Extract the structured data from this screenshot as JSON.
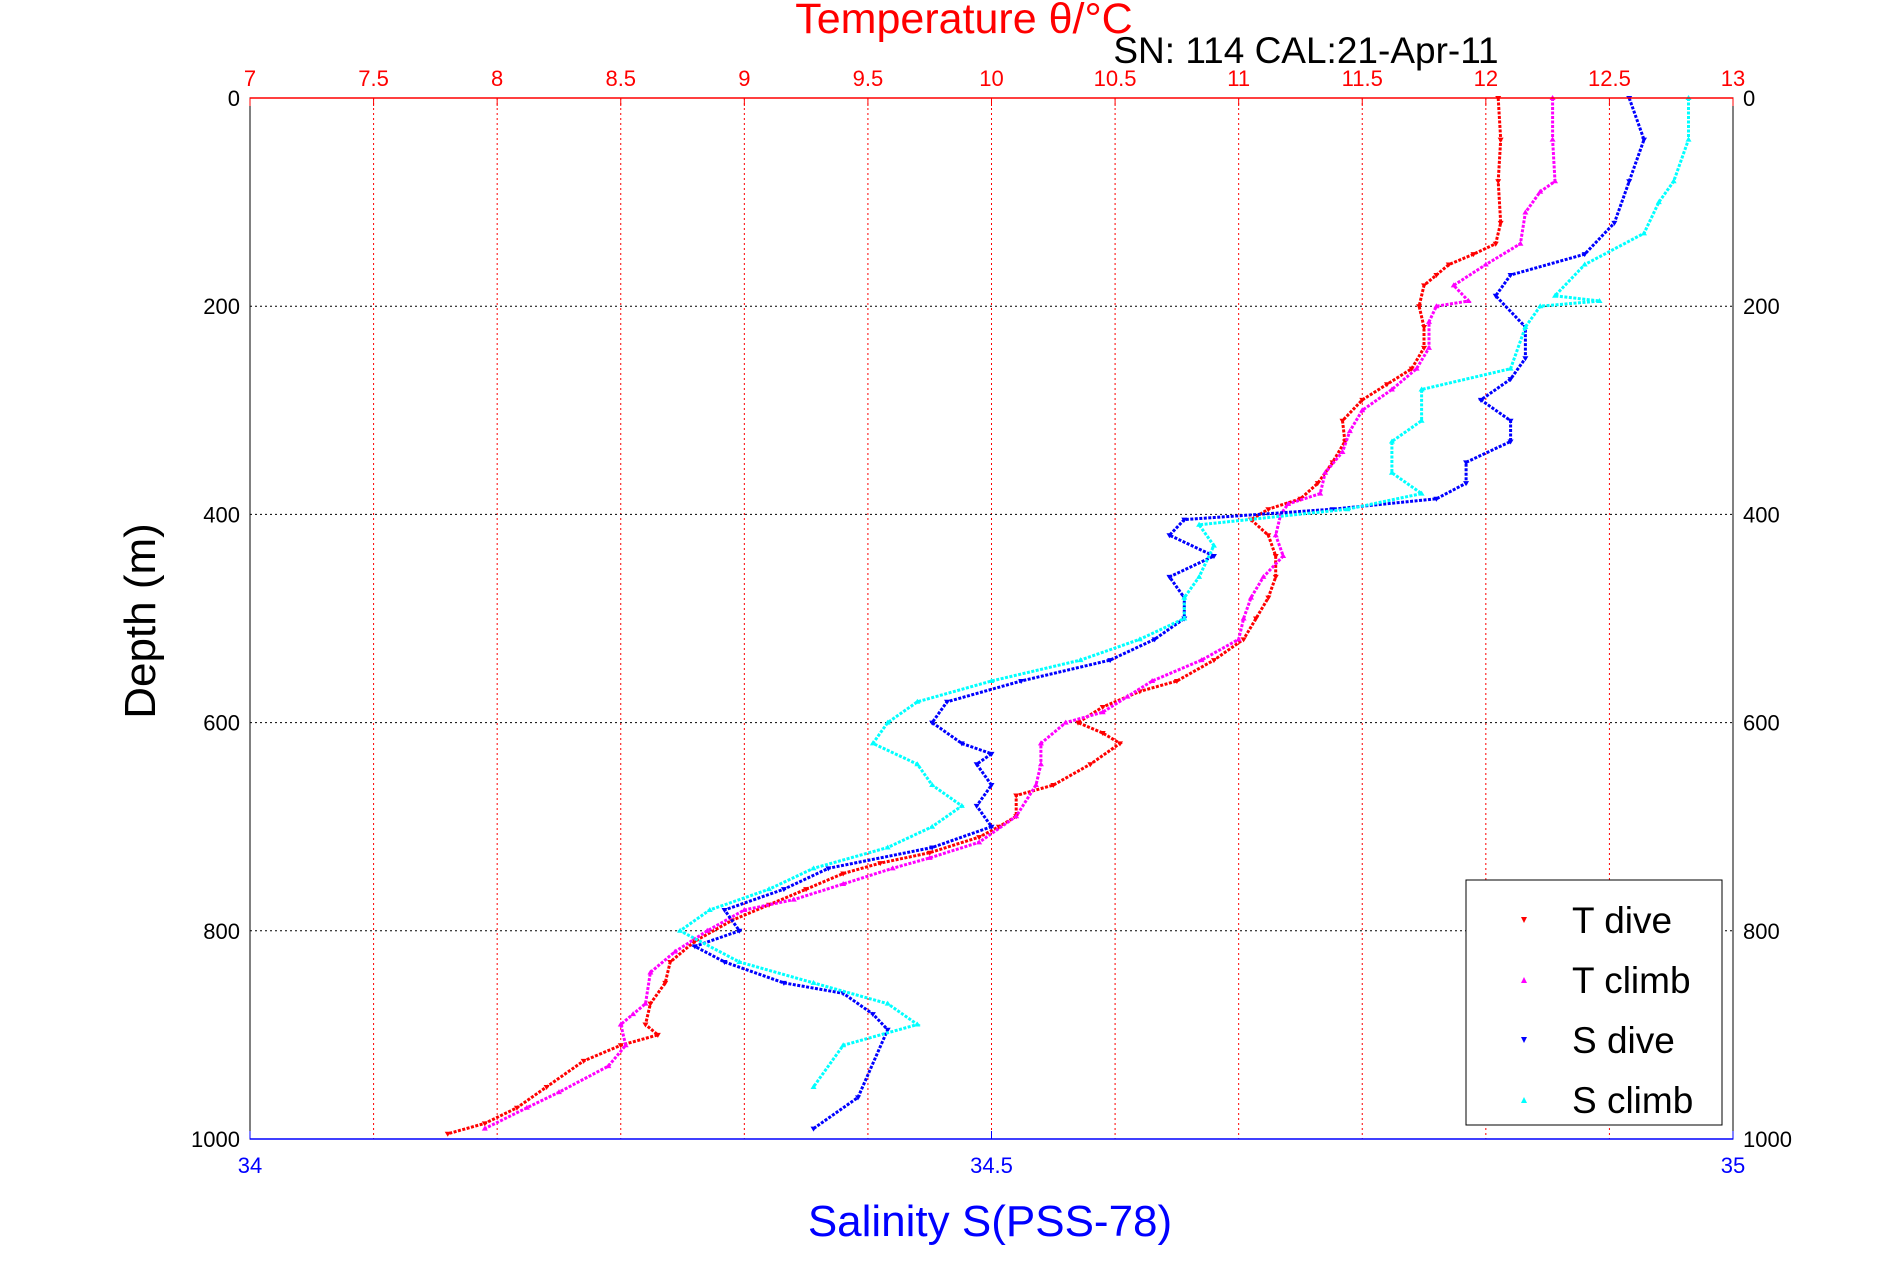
{
  "chart_data": {
    "type": "scatter",
    "title": "Temperature θ/°C",
    "subtitle": "SN: 114  CAL:21-Apr-11",
    "xlabel_top": "Temperature θ/°C",
    "xlabel_bottom": "Salinity S(PSS-78)",
    "ylabel": "Depth (m)",
    "temperature_axis": {
      "range": [
        7,
        13
      ],
      "ticks": [
        "7",
        "7.5",
        "8",
        "8.5",
        "9",
        "9.5",
        "10",
        "10.5",
        "11",
        "11.5",
        "12",
        "12.5",
        "13"
      ],
      "color": "#ff0000"
    },
    "salinity_axis": {
      "range": [
        34,
        35
      ],
      "ticks": [
        "34",
        "34.5",
        "35"
      ],
      "color": "#0000ff"
    },
    "depth_axis": {
      "range": [
        0,
        1000
      ],
      "reversed": true,
      "ticks": [
        "0",
        "200",
        "400",
        "600",
        "800",
        "1000"
      ]
    },
    "grid": true,
    "legend": {
      "placement": "bottom-right",
      "entries": [
        "T dive",
        "T climb",
        "S dive",
        "S climb"
      ]
    },
    "series": [
      {
        "name": "T dive",
        "axis": "temperature",
        "color": "#ff0000",
        "marker": "triangle-down",
        "points": [
          [
            12.05,
            0
          ],
          [
            12.06,
            40
          ],
          [
            12.05,
            80
          ],
          [
            12.06,
            120
          ],
          [
            12.04,
            140
          ],
          [
            11.95,
            150
          ],
          [
            11.85,
            160
          ],
          [
            11.8,
            170
          ],
          [
            11.75,
            180
          ],
          [
            11.73,
            200
          ],
          [
            11.75,
            220
          ],
          [
            11.75,
            240
          ],
          [
            11.7,
            260
          ],
          [
            11.6,
            275
          ],
          [
            11.5,
            290
          ],
          [
            11.42,
            310
          ],
          [
            11.43,
            330
          ],
          [
            11.38,
            350
          ],
          [
            11.32,
            370
          ],
          [
            11.25,
            385
          ],
          [
            11.12,
            395
          ],
          [
            11.05,
            405
          ],
          [
            11.12,
            420
          ],
          [
            11.15,
            440
          ],
          [
            11.15,
            460
          ],
          [
            11.12,
            480
          ],
          [
            11.07,
            500
          ],
          [
            11.02,
            520
          ],
          [
            10.9,
            540
          ],
          [
            10.75,
            560
          ],
          [
            10.6,
            570
          ],
          [
            10.45,
            585
          ],
          [
            10.35,
            600
          ],
          [
            10.45,
            610
          ],
          [
            10.52,
            620
          ],
          [
            10.4,
            640
          ],
          [
            10.25,
            660
          ],
          [
            10.1,
            670
          ],
          [
            10.1,
            690
          ],
          [
            10.03,
            700
          ],
          [
            9.95,
            710
          ],
          [
            9.75,
            725
          ],
          [
            9.55,
            735
          ],
          [
            9.4,
            745
          ],
          [
            9.25,
            760
          ],
          [
            9.1,
            775
          ],
          [
            8.95,
            790
          ],
          [
            8.8,
            810
          ],
          [
            8.7,
            830
          ],
          [
            8.68,
            850
          ],
          [
            8.62,
            870
          ],
          [
            8.6,
            890
          ],
          [
            8.65,
            900
          ],
          [
            8.5,
            910
          ],
          [
            8.35,
            925
          ],
          [
            8.2,
            950
          ],
          [
            8.08,
            970
          ],
          [
            7.95,
            985
          ],
          [
            7.8,
            995
          ]
        ]
      },
      {
        "name": "T climb",
        "axis": "temperature",
        "color": "#ff00ff",
        "marker": "triangle-up",
        "points": [
          [
            12.27,
            0
          ],
          [
            12.27,
            40
          ],
          [
            12.28,
            80
          ],
          [
            12.22,
            90
          ],
          [
            12.16,
            110
          ],
          [
            12.14,
            140
          ],
          [
            12.0,
            160
          ],
          [
            11.87,
            180
          ],
          [
            11.93,
            195
          ],
          [
            11.8,
            200
          ],
          [
            11.77,
            215
          ],
          [
            11.77,
            240
          ],
          [
            11.72,
            260
          ],
          [
            11.62,
            280
          ],
          [
            11.5,
            300
          ],
          [
            11.45,
            320
          ],
          [
            11.42,
            340
          ],
          [
            11.35,
            360
          ],
          [
            11.33,
            380
          ],
          [
            11.2,
            390
          ],
          [
            11.17,
            400
          ],
          [
            11.15,
            420
          ],
          [
            11.18,
            440
          ],
          [
            11.1,
            460
          ],
          [
            11.05,
            480
          ],
          [
            11.02,
            500
          ],
          [
            11.0,
            520
          ],
          [
            10.85,
            540
          ],
          [
            10.65,
            560
          ],
          [
            10.55,
            575
          ],
          [
            10.45,
            590
          ],
          [
            10.3,
            600
          ],
          [
            10.2,
            620
          ],
          [
            10.2,
            640
          ],
          [
            10.18,
            660
          ],
          [
            10.1,
            690
          ],
          [
            9.95,
            715
          ],
          [
            9.75,
            730
          ],
          [
            9.6,
            740
          ],
          [
            9.4,
            755
          ],
          [
            9.2,
            770
          ],
          [
            9.0,
            780
          ],
          [
            8.85,
            800
          ],
          [
            8.72,
            820
          ],
          [
            8.62,
            840
          ],
          [
            8.6,
            870
          ],
          [
            8.55,
            880
          ],
          [
            8.5,
            890
          ],
          [
            8.52,
            910
          ],
          [
            8.45,
            930
          ],
          [
            8.25,
            955
          ],
          [
            8.12,
            970
          ],
          [
            7.95,
            990
          ]
        ]
      },
      {
        "name": "S dive",
        "axis": "salinity",
        "color": "#0000ff",
        "marker": "triangle-down",
        "points": [
          [
            34.93,
            0
          ],
          [
            34.94,
            40
          ],
          [
            34.93,
            80
          ],
          [
            34.92,
            120
          ],
          [
            34.9,
            150
          ],
          [
            34.85,
            170
          ],
          [
            34.84,
            190
          ],
          [
            34.86,
            220
          ],
          [
            34.86,
            250
          ],
          [
            34.85,
            270
          ],
          [
            34.83,
            290
          ],
          [
            34.85,
            310
          ],
          [
            34.85,
            330
          ],
          [
            34.82,
            350
          ],
          [
            34.82,
            370
          ],
          [
            34.8,
            385
          ],
          [
            34.73,
            395
          ],
          [
            34.63,
            405
          ],
          [
            34.62,
            420
          ],
          [
            34.65,
            440
          ],
          [
            34.62,
            460
          ],
          [
            34.63,
            480
          ],
          [
            34.63,
            500
          ],
          [
            34.61,
            520
          ],
          [
            34.58,
            540
          ],
          [
            34.52,
            560
          ],
          [
            34.47,
            580
          ],
          [
            34.46,
            600
          ],
          [
            34.48,
            620
          ],
          [
            34.5,
            630
          ],
          [
            34.49,
            640
          ],
          [
            34.5,
            660
          ],
          [
            34.49,
            680
          ],
          [
            34.5,
            700
          ],
          [
            34.46,
            720
          ],
          [
            34.39,
            740
          ],
          [
            34.36,
            760
          ],
          [
            34.32,
            780
          ],
          [
            34.33,
            800
          ],
          [
            34.3,
            815
          ],
          [
            34.32,
            830
          ],
          [
            34.36,
            850
          ],
          [
            34.4,
            860
          ],
          [
            34.42,
            880
          ],
          [
            34.43,
            895
          ],
          [
            34.41,
            960
          ],
          [
            34.38,
            990
          ]
        ]
      },
      {
        "name": "S climb",
        "axis": "salinity",
        "color": "#00ffff",
        "marker": "triangle-up",
        "points": [
          [
            34.97,
            0
          ],
          [
            34.97,
            40
          ],
          [
            34.96,
            80
          ],
          [
            34.95,
            100
          ],
          [
            34.94,
            130
          ],
          [
            34.9,
            160
          ],
          [
            34.88,
            190
          ],
          [
            34.91,
            195
          ],
          [
            34.87,
            200
          ],
          [
            34.86,
            220
          ],
          [
            34.85,
            260
          ],
          [
            34.79,
            280
          ],
          [
            34.79,
            310
          ],
          [
            34.77,
            330
          ],
          [
            34.77,
            360
          ],
          [
            34.79,
            380
          ],
          [
            34.74,
            395
          ],
          [
            34.64,
            410
          ],
          [
            34.65,
            430
          ],
          [
            34.64,
            460
          ],
          [
            34.63,
            480
          ],
          [
            34.63,
            500
          ],
          [
            34.6,
            520
          ],
          [
            34.56,
            540
          ],
          [
            34.5,
            560
          ],
          [
            34.45,
            580
          ],
          [
            34.43,
            600
          ],
          [
            34.42,
            620
          ],
          [
            34.45,
            640
          ],
          [
            34.46,
            660
          ],
          [
            34.48,
            680
          ],
          [
            34.46,
            700
          ],
          [
            34.43,
            720
          ],
          [
            34.38,
            740
          ],
          [
            34.35,
            760
          ],
          [
            34.31,
            780
          ],
          [
            34.29,
            800
          ],
          [
            34.33,
            830
          ],
          [
            34.38,
            850
          ],
          [
            34.43,
            870
          ],
          [
            34.45,
            890
          ],
          [
            34.4,
            910
          ],
          [
            34.38,
            950
          ]
        ]
      }
    ]
  }
}
